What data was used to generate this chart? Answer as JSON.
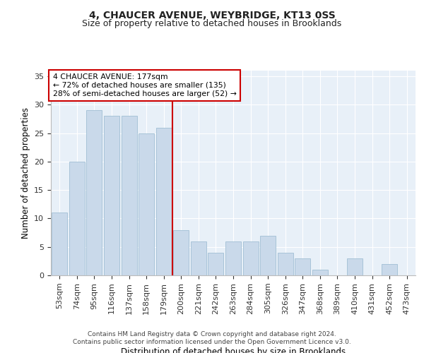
{
  "title1": "4, CHAUCER AVENUE, WEYBRIDGE, KT13 0SS",
  "title2": "Size of property relative to detached houses in Brooklands",
  "xlabel": "Distribution of detached houses by size in Brooklands",
  "ylabel": "Number of detached properties",
  "categories": [
    "53sqm",
    "74sqm",
    "95sqm",
    "116sqm",
    "137sqm",
    "158sqm",
    "179sqm",
    "200sqm",
    "221sqm",
    "242sqm",
    "263sqm",
    "284sqm",
    "305sqm",
    "326sqm",
    "347sqm",
    "368sqm",
    "389sqm",
    "410sqm",
    "431sqm",
    "452sqm",
    "473sqm"
  ],
  "values": [
    11,
    20,
    29,
    28,
    28,
    25,
    26,
    8,
    6,
    4,
    6,
    6,
    7,
    4,
    3,
    1,
    0,
    3,
    0,
    2,
    0
  ],
  "bar_color": "#c9d9ea",
  "bar_edge_color": "#a8c4d8",
  "marker_line_color": "#cc0000",
  "annotation_line1": "4 CHAUCER AVENUE: 177sqm",
  "annotation_line2": "← 72% of detached houses are smaller (135)",
  "annotation_line3": "28% of semi-detached houses are larger (52) →",
  "annotation_box_facecolor": "#ffffff",
  "annotation_box_edgecolor": "#cc0000",
  "ylim": [
    0,
    36
  ],
  "yticks": [
    0,
    5,
    10,
    15,
    20,
    25,
    30,
    35
  ],
  "plot_bg": "#e8f0f8",
  "grid_color": "#ffffff",
  "footer1": "Contains HM Land Registry data © Crown copyright and database right 2024.",
  "footer2": "Contains public sector information licensed under the Open Government Licence v3.0."
}
